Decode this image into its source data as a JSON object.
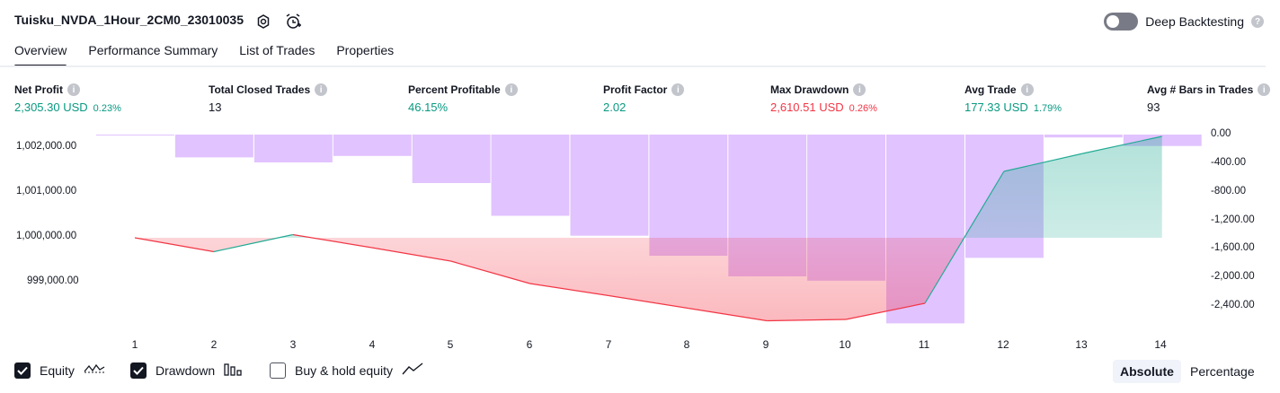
{
  "header": {
    "strategy_name": "Tuisku_NVDA_1Hour_2CM0_23010035",
    "deep_backtesting_label": "Deep Backtesting",
    "deep_backtesting_enabled": false,
    "help_glyph": "?"
  },
  "tabs": [
    {
      "label": "Overview",
      "active": true
    },
    {
      "label": "Performance Summary",
      "active": false
    },
    {
      "label": "List of Trades",
      "active": false
    },
    {
      "label": "Properties",
      "active": false
    }
  ],
  "metrics": [
    {
      "label": "Net Profit",
      "value": "2,305.30 USD",
      "pct": "0.23%",
      "tone": "green",
      "info_glyph": "i"
    },
    {
      "label": "Total Closed Trades",
      "value": "13",
      "pct": "",
      "tone": "neutral",
      "info_glyph": "i"
    },
    {
      "label": "Percent Profitable",
      "value": "46.15%",
      "pct": "",
      "tone": "green",
      "info_glyph": "i"
    },
    {
      "label": "Profit Factor",
      "value": "2.02",
      "pct": "",
      "tone": "green",
      "info_glyph": "i"
    },
    {
      "label": "Max Drawdown",
      "value": "2,610.51 USD",
      "pct": "0.26%",
      "tone": "red",
      "info_glyph": "i"
    },
    {
      "label": "Avg Trade",
      "value": "177.33 USD",
      "pct": "1.79%",
      "tone": "green",
      "info_glyph": "i"
    },
    {
      "label": "Avg # Bars in Trades",
      "value": "93",
      "pct": "",
      "tone": "neutral",
      "info_glyph": "i"
    }
  ],
  "chart_data": {
    "type": "line",
    "x": [
      "1",
      "2",
      "3",
      "4",
      "5",
      "6",
      "7",
      "8",
      "9",
      "10",
      "11",
      "12",
      "13",
      "14"
    ],
    "left_axis": {
      "ticks": [
        "1,002,000.00",
        "1,001,000.00",
        "1,000,000.00",
        "999,000.00"
      ],
      "tick_values": [
        1002000,
        1001000,
        1000000,
        999000
      ]
    },
    "right_axis": {
      "ticks": [
        "0.00",
        "-400.00",
        "-800.00",
        "-1,200.00",
        "-1,600.00",
        "-2,000.00",
        "-2,400.00"
      ],
      "tick_values": [
        0,
        -400,
        -800,
        -1200,
        -1600,
        -2000,
        -2400
      ]
    },
    "series": [
      {
        "name": "Equity",
        "axis": "left",
        "type": "line",
        "values": [
          1000000,
          999690,
          1000070,
          999780,
          999480,
          998980,
          998710,
          998430,
          998150,
          998180,
          998540,
          1001480,
          1001880,
          1002260
        ]
      },
      {
        "name": "Drawdown",
        "axis": "right",
        "type": "bar",
        "values": [
          -10,
          -320,
          -390,
          -300,
          -680,
          -1140,
          -1420,
          -1700,
          -1990,
          -2050,
          -2650,
          -1730,
          -40,
          -160
        ]
      }
    ],
    "baseline": 1000000,
    "colors": {
      "equity_up": "#22ab94",
      "equity_down": "#f23645",
      "drawdown": "#c891ff",
      "axis_text": "#131722"
    }
  },
  "legend": {
    "equity": {
      "label": "Equity",
      "checked": true,
      "icon": "equity-line-icon"
    },
    "drawdown": {
      "label": "Drawdown",
      "checked": true,
      "icon": "bars-icon"
    },
    "buy_hold": {
      "label": "Buy & hold equity",
      "checked": false,
      "icon": "line-up-icon"
    }
  },
  "view_mode": {
    "absolute_label": "Absolute",
    "percentage_label": "Percentage",
    "selected": "Absolute"
  }
}
